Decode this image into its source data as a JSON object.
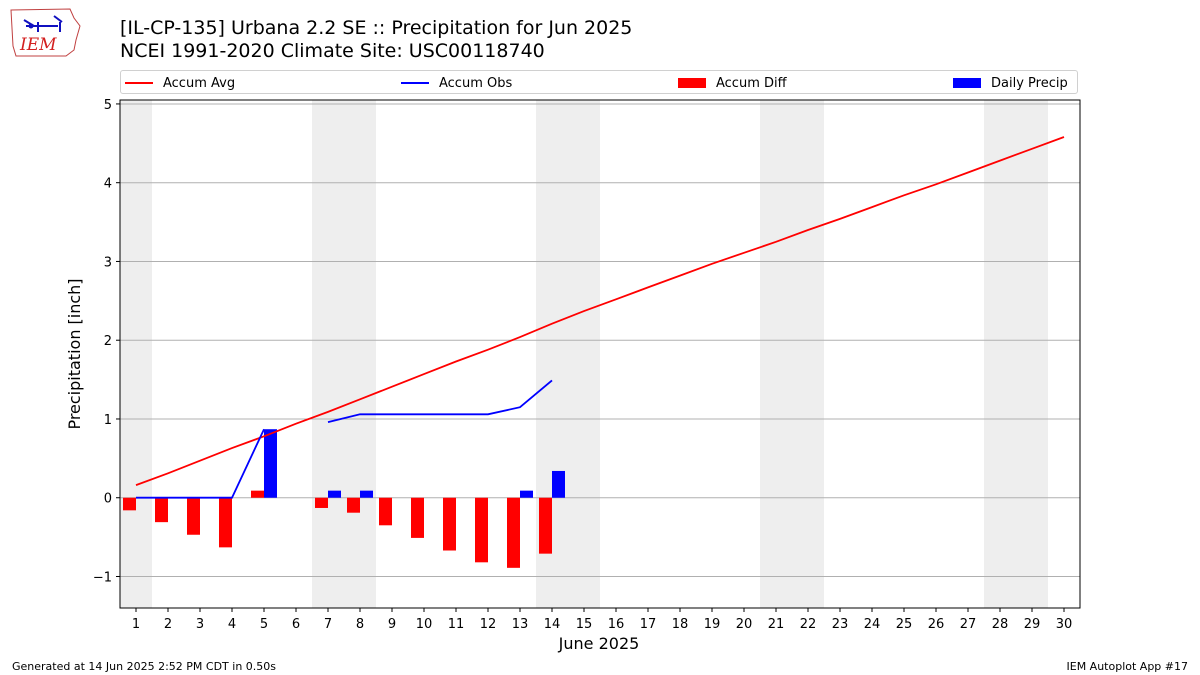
{
  "header": {
    "title_line1": "[IL-CP-135] Urbana 2.2 SE :: Precipitation for Jun 2025",
    "title_line2": "NCEI 1991-2020 Climate Site: USC00118740"
  },
  "logo": {
    "text": "IEM",
    "color": "#d32020"
  },
  "legend": {
    "items": [
      {
        "label": "Accum Avg",
        "kind": "line",
        "color": "#ff0000"
      },
      {
        "label": "Accum Obs",
        "kind": "line",
        "color": "#0000ff"
      },
      {
        "label": "Accum Diff",
        "kind": "patch",
        "color": "#ff0000"
      },
      {
        "label": "Daily Precip",
        "kind": "patch",
        "color": "#0000ff"
      }
    ]
  },
  "footer": {
    "left": "Generated at 14 Jun 2025 2:52 PM CDT in 0.50s",
    "right": "IEM Autoplot App #17"
  },
  "chart_data": {
    "type": "bar",
    "xlabel": "June 2025",
    "ylabel": "Precipitation [inch]",
    "xlim": [
      0.5,
      30.5
    ],
    "ylim": [
      -1.4,
      5.05
    ],
    "yticks": [
      -1,
      0,
      1,
      2,
      3,
      4,
      5
    ],
    "ytick_labels": [
      "−1",
      "0",
      "1",
      "2",
      "3",
      "4",
      "5"
    ],
    "grid": "horizontal",
    "legend_position": "top",
    "x": [
      1,
      2,
      3,
      4,
      5,
      6,
      7,
      8,
      9,
      10,
      11,
      12,
      13,
      14,
      15,
      16,
      17,
      18,
      19,
      20,
      21,
      22,
      23,
      24,
      25,
      26,
      27,
      28,
      29,
      30
    ],
    "weekend_shading": [
      [
        0.5,
        1.5
      ],
      [
        6.5,
        8.5
      ],
      [
        13.5,
        15.5
      ],
      [
        20.5,
        22.5
      ],
      [
        27.5,
        29.5
      ]
    ],
    "shade_color": "#eeeeee",
    "series": [
      {
        "name": "Accum Avg",
        "type": "line",
        "color": "#ff0000",
        "x": [
          1,
          2,
          3,
          4,
          5,
          6,
          7,
          8,
          9,
          10,
          11,
          12,
          13,
          14,
          15,
          16,
          17,
          18,
          19,
          20,
          21,
          22,
          23,
          24,
          25,
          26,
          27,
          28,
          29,
          30
        ],
        "values": [
          0.16,
          0.31,
          0.47,
          0.63,
          0.78,
          0.94,
          1.09,
          1.25,
          1.41,
          1.57,
          1.73,
          1.88,
          2.04,
          2.21,
          2.37,
          2.52,
          2.67,
          2.82,
          2.97,
          3.11,
          3.25,
          3.4,
          3.54,
          3.69,
          3.84,
          3.98,
          4.13,
          4.28,
          4.43,
          4.58
        ]
      },
      {
        "name": "Accum Obs",
        "type": "line",
        "color": "#0000ff",
        "x": [
          1,
          2,
          3,
          4,
          5,
          7,
          8,
          9,
          10,
          11,
          12,
          13,
          14
        ],
        "values": [
          0.0,
          0.0,
          0.0,
          0.0,
          0.87,
          0.96,
          1.06,
          1.06,
          1.06,
          1.06,
          1.06,
          1.15,
          1.49
        ]
      },
      {
        "name": "Accum Diff",
        "type": "bar",
        "color": "#ff0000",
        "offset": "left",
        "x": [
          1,
          2,
          3,
          4,
          5,
          7,
          8,
          9,
          10,
          11,
          12,
          13,
          14
        ],
        "values": [
          -0.16,
          -0.31,
          -0.47,
          -0.63,
          0.09,
          -0.13,
          -0.19,
          -0.35,
          -0.51,
          -0.67,
          -0.82,
          -0.89,
          -0.71
        ]
      },
      {
        "name": "Daily Precip",
        "type": "bar",
        "color": "#0000ff",
        "offset": "right",
        "x": [
          5,
          7,
          8,
          13,
          14
        ],
        "values": [
          0.87,
          0.09,
          0.09,
          0.09,
          0.34
        ]
      }
    ]
  }
}
